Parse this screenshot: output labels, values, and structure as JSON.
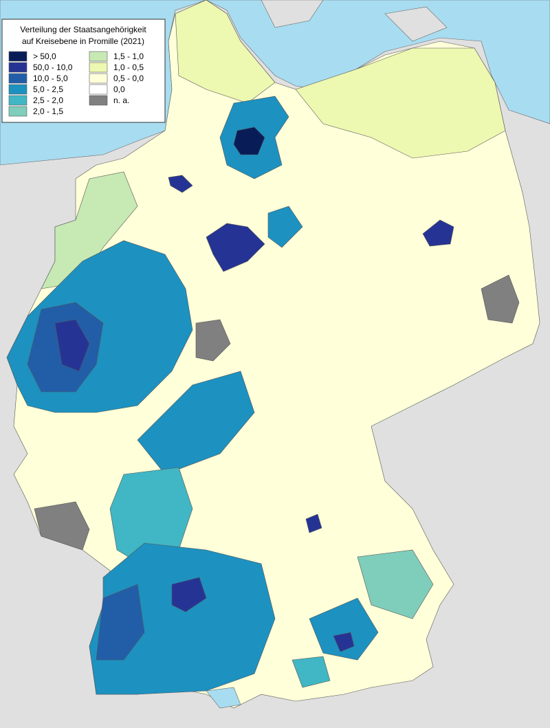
{
  "legend": {
    "title_lines": [
      "Verteilung der Staatsangehörigkeit",
      "auf Kreisebene in Promille (2021)"
    ],
    "items": [
      {
        "label": "> 50,0",
        "color": "#081d58"
      },
      {
        "label": "50,0 - 10,0",
        "color": "#253494"
      },
      {
        "label": "10,0 - 5,0",
        "color": "#225ea8"
      },
      {
        "label": "5,0 - 2,5",
        "color": "#1d91c0"
      },
      {
        "label": "2,5 - 2,0",
        "color": "#41b6c4"
      },
      {
        "label": "2,0 - 1,5",
        "color": "#7fcdbb"
      },
      {
        "label": "1,5 - 1,0",
        "color": "#c7e9b4"
      },
      {
        "label": "1,0 - 0,5",
        "color": "#edf8b1"
      },
      {
        "label": "0,5 - 0,0",
        "color": "#ffffd9"
      },
      {
        "label": "0,0",
        "color": "#ffffff"
      },
      {
        "label": "n. a.",
        "color": "#808080"
      }
    ]
  }
}
